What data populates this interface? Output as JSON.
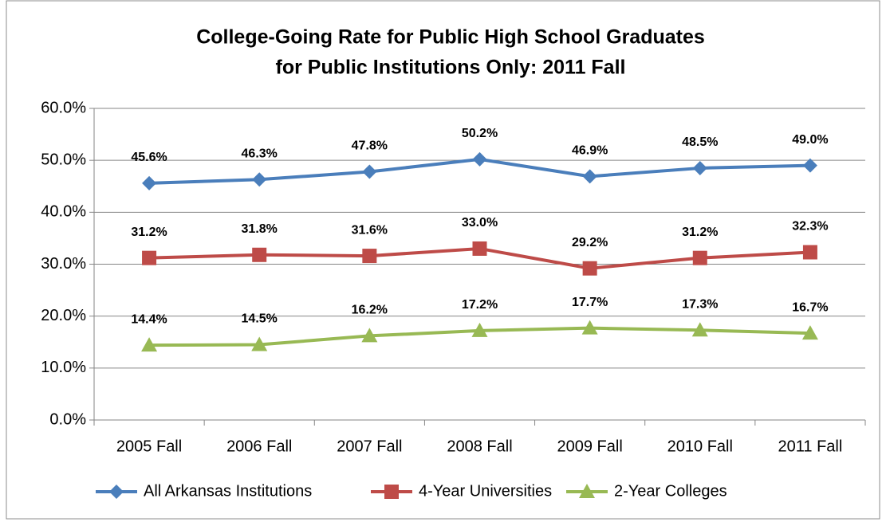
{
  "chart_data": {
    "type": "line",
    "title": [
      "College-Going Rate for Public High School Graduates",
      "for Public Institutions Only: 2011 Fall"
    ],
    "categories": [
      "2005 Fall",
      "2006 Fall",
      "2007 Fall",
      "2008 Fall",
      "2009 Fall",
      "2010 Fall",
      "2011 Fall"
    ],
    "series": [
      {
        "name": "All Arkansas Institutions",
        "color": "#4a7ebb",
        "marker": "diamond",
        "values": [
          45.6,
          46.3,
          47.8,
          50.2,
          46.9,
          48.5,
          49.0
        ],
        "value_labels": [
          "45.6%",
          "46.3%",
          "47.8%",
          "50.2%",
          "46.9%",
          "48.5%",
          "49.0%"
        ]
      },
      {
        "name": "4-Year Universities",
        "color": "#be4b48",
        "marker": "square",
        "values": [
          31.2,
          31.8,
          31.6,
          33.0,
          29.2,
          31.2,
          32.3
        ],
        "value_labels": [
          "31.2%",
          "31.8%",
          "31.6%",
          "33.0%",
          "29.2%",
          "31.2%",
          "32.3%"
        ]
      },
      {
        "name": "2-Year Colleges",
        "color": "#98b954",
        "marker": "triangle",
        "values": [
          14.4,
          14.5,
          16.2,
          17.2,
          17.7,
          17.3,
          16.7
        ],
        "value_labels": [
          "14.4%",
          "14.5%",
          "16.2%",
          "17.2%",
          "17.7%",
          "17.3%",
          "16.7%"
        ]
      }
    ],
    "ylim": [
      0,
      60
    ],
    "yticks": [
      {
        "value": 0,
        "label": "0.0%"
      },
      {
        "value": 10,
        "label": "10.0%"
      },
      {
        "value": 20,
        "label": "20.0%"
      },
      {
        "value": 30,
        "label": "30.0%"
      },
      {
        "value": 40,
        "label": "40.0%"
      },
      {
        "value": 50,
        "label": "50.0%"
      },
      {
        "value": 60,
        "label": "60.0%"
      }
    ],
    "grid": true,
    "legend": "bottom"
  }
}
